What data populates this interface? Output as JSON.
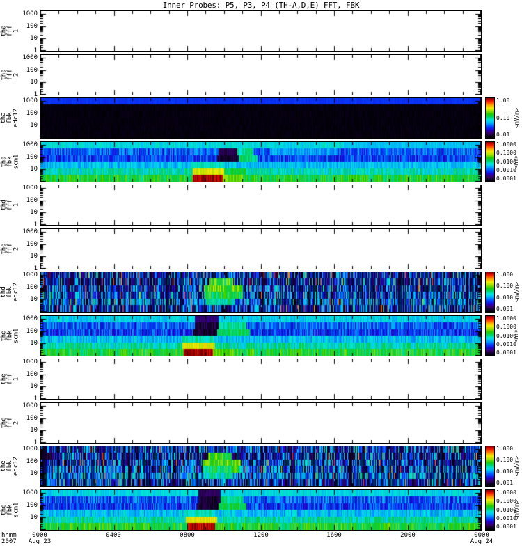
{
  "title": "Inner Probes: P5, P3, P4 (TH-A,D,E) FFT, FBK",
  "xaxis": {
    "unit_label": "hhmm",
    "year_label": "2007",
    "ticks": [
      {
        "hour": 0,
        "label": "0000",
        "sub": "Aug 23"
      },
      {
        "hour": 4,
        "label": "0400"
      },
      {
        "hour": 8,
        "label": "0800"
      },
      {
        "hour": 12,
        "label": "1200"
      },
      {
        "hour": 16,
        "label": "1600"
      },
      {
        "hour": 20,
        "label": "2000"
      },
      {
        "hour": 24,
        "label": "0000",
        "sub": "Aug 24"
      }
    ]
  },
  "chart_data": {
    "type": "heatmap",
    "subtype": "multi-panel-spectrogram",
    "time_range_hours": [
      0,
      24
    ],
    "y_scale": "log",
    "y_range": [
      1,
      1000
    ],
    "colormap": [
      [
        0.0,
        "#000000"
      ],
      [
        0.06,
        "#10002a"
      ],
      [
        0.13,
        "#38006a"
      ],
      [
        0.2,
        "#2200cc"
      ],
      [
        0.28,
        "#0044ff"
      ],
      [
        0.37,
        "#00aaff"
      ],
      [
        0.45,
        "#00e6dd"
      ],
      [
        0.53,
        "#00d060"
      ],
      [
        0.6,
        "#22cc00"
      ],
      [
        0.68,
        "#a8e000"
      ],
      [
        0.75,
        "#eeee00"
      ],
      [
        0.82,
        "#ffaa00"
      ],
      [
        0.9,
        "#ff3300"
      ],
      [
        0.96,
        "#cc0000"
      ],
      [
        1.0,
        "#7a0000"
      ]
    ],
    "panels": [
      {
        "id": "tha_fff_1",
        "label_lines": [
          "tha",
          "fff",
          "1"
        ],
        "kind": "empty",
        "yticks": [
          1000,
          100,
          10,
          1
        ]
      },
      {
        "id": "tha_fff_2",
        "label_lines": [
          "tha",
          "fff",
          "2"
        ],
        "kind": "empty",
        "yticks": [
          1000,
          100,
          10,
          1
        ]
      },
      {
        "id": "tha_fbk_edc12",
        "label_lines": [
          "tha",
          "fbk",
          "edc12"
        ],
        "kind": "spectrogram",
        "seed": 11,
        "yticks": [
          1000,
          100,
          10
        ],
        "colorbar": {
          "ticks": [
            "1.00",
            "0.10",
            "0.01"
          ],
          "unit": "<mV/m>"
        },
        "bands": [
          {
            "base": 0.26,
            "jitter": 0.012
          },
          {
            "base": 0.02,
            "jitter": 0.015
          },
          {
            "base": 0.02,
            "jitter": 0.015
          },
          {
            "base": 0.02,
            "jitter": 0.015
          },
          {
            "base": 0.02,
            "jitter": 0.015
          },
          {
            "base": 0.02,
            "jitter": 0.015
          }
        ]
      },
      {
        "id": "tha_fbk_scm1",
        "label_lines": [
          "tha",
          "fbk",
          "scm1"
        ],
        "kind": "spectrogram",
        "seed": 22,
        "yticks": [
          1000,
          100,
          10
        ],
        "colorbar": {
          "ticks": [
            "1.0000",
            "0.1000",
            "0.0100",
            "0.0010",
            "0.0001"
          ],
          "unit": "<nT>"
        },
        "bands": [
          {
            "base": 0.44,
            "jitter": 0.05,
            "events": [
              [
                16.5,
                24,
                0.4
              ]
            ]
          },
          {
            "base": 0.3,
            "jitter": 0.1,
            "events": [
              [
                9.7,
                10.7,
                0.1
              ],
              [
                10.7,
                11.6,
                0.5
              ],
              [
                12.5,
                16,
                0.36
              ]
            ]
          },
          {
            "base": 0.27,
            "jitter": 0.09,
            "events": [
              [
                9.6,
                10.8,
                0.07
              ],
              [
                10.8,
                11.8,
                0.52
              ]
            ]
          },
          {
            "base": 0.4,
            "jitter": 0.07,
            "events": [
              [
                8.2,
                10.0,
                0.47
              ]
            ]
          },
          {
            "base": 0.47,
            "jitter": 0.09,
            "events": [
              [
                8.3,
                10.0,
                0.73
              ],
              [
                10.0,
                11.2,
                0.55
              ]
            ]
          },
          {
            "base": 0.57,
            "jitter": 0.09,
            "events": [
              [
                8.3,
                9.9,
                0.98
              ],
              [
                9.9,
                11.0,
                0.65
              ]
            ]
          }
        ]
      },
      {
        "id": "thd_fff_1",
        "label_lines": [
          "thd",
          "fff",
          "1"
        ],
        "kind": "empty",
        "yticks": [
          1000,
          100,
          10,
          1
        ]
      },
      {
        "id": "thd_fff_2",
        "label_lines": [
          "thd",
          "fff",
          "2"
        ],
        "kind": "empty",
        "yticks": [
          1000,
          100,
          10,
          1
        ]
      },
      {
        "id": "thd_fbk_edc12",
        "label_lines": [
          "thd",
          "fbk",
          "edc12"
        ],
        "kind": "spectrogram",
        "seed": 33,
        "yticks": [
          1000,
          100,
          10
        ],
        "columnDropout": 0.18,
        "colorbar": {
          "ticks": [
            "1.000",
            "0.100",
            "0.010",
            "0.001"
          ],
          "unit": "<mV/m>"
        },
        "bands": [
          {
            "base": 0.3,
            "jitter": 0.18,
            "dropout": 0.22,
            "spike": 0.02
          },
          {
            "base": 0.28,
            "jitter": 0.2,
            "dropout": 0.28,
            "spike": 0.02,
            "events": [
              [
                9.2,
                10.5,
                0.6
              ]
            ]
          },
          {
            "base": 0.3,
            "jitter": 0.18,
            "dropout": 0.24,
            "spike": 0.02,
            "events": [
              [
                8.9,
                11.0,
                0.62
              ]
            ]
          },
          {
            "base": 0.33,
            "jitter": 0.18,
            "dropout": 0.2,
            "spike": 0.02,
            "events": [
              [
                8.9,
                11.0,
                0.55
              ]
            ]
          },
          {
            "base": 0.36,
            "jitter": 0.16,
            "dropout": 0.16,
            "spike": 0.03,
            "events": [
              [
                9.0,
                10.6,
                0.48
              ]
            ]
          },
          {
            "base": 0.3,
            "jitter": 0.18,
            "dropout": 0.22,
            "spike": 0.03
          }
        ]
      },
      {
        "id": "thd_fbk_scm1",
        "label_lines": [
          "thd",
          "fbk",
          "scm1"
        ],
        "kind": "spectrogram",
        "seed": 44,
        "yticks": [
          1000,
          100,
          10
        ],
        "colorbar": {
          "ticks": [
            "1.0000",
            "0.1000",
            "0.0100",
            "0.0010",
            "0.0001"
          ],
          "unit": "<nT>"
        },
        "bands": [
          {
            "base": 0.42,
            "jitter": 0.06,
            "events": [
              [
                8.4,
                9.7,
                0.13
              ]
            ]
          },
          {
            "base": 0.3,
            "jitter": 0.11,
            "events": [
              [
                8.4,
                9.7,
                0.08
              ],
              [
                9.7,
                11.2,
                0.5
              ]
            ]
          },
          {
            "base": 0.27,
            "jitter": 0.1,
            "events": [
              [
                8.3,
                9.6,
                0.06
              ],
              [
                9.6,
                11.4,
                0.54
              ]
            ]
          },
          {
            "base": 0.4,
            "jitter": 0.08,
            "events": [
              [
                7.7,
                9.4,
                0.48
              ]
            ]
          },
          {
            "base": 0.48,
            "jitter": 0.1,
            "events": [
              [
                7.7,
                9.5,
                0.74
              ]
            ]
          },
          {
            "base": 0.57,
            "jitter": 0.1,
            "events": [
              [
                7.8,
                9.4,
                0.98
              ],
              [
                9.4,
                10.5,
                0.65
              ]
            ]
          }
        ]
      },
      {
        "id": "the_fff_1",
        "label_lines": [
          "the",
          "fff",
          "1"
        ],
        "kind": "empty",
        "yticks": [
          1000,
          100,
          10,
          1
        ]
      },
      {
        "id": "the_fff_2",
        "label_lines": [
          "the",
          "fff",
          "2"
        ],
        "kind": "empty",
        "yticks": [
          1000,
          100,
          10,
          1
        ]
      },
      {
        "id": "the_fbk_edc12",
        "label_lines": [
          "the",
          "fbk",
          "edc12"
        ],
        "kind": "spectrogram",
        "seed": 55,
        "yticks": [
          1000,
          100,
          10
        ],
        "columnDropout": 0.18,
        "colorbar": {
          "ticks": [
            "1.000",
            "0.100",
            "0.010",
            "0.001"
          ],
          "unit": "<mV/m>"
        },
        "bands": [
          {
            "base": 0.3,
            "jitter": 0.18,
            "dropout": 0.22,
            "spike": 0.02
          },
          {
            "base": 0.28,
            "jitter": 0.2,
            "dropout": 0.28,
            "spike": 0.02,
            "events": [
              [
                9.1,
                10.4,
                0.6
              ]
            ]
          },
          {
            "base": 0.3,
            "jitter": 0.18,
            "dropout": 0.24,
            "spike": 0.02,
            "events": [
              [
                8.8,
                10.9,
                0.62
              ]
            ]
          },
          {
            "base": 0.33,
            "jitter": 0.18,
            "dropout": 0.2,
            "spike": 0.02,
            "events": [
              [
                8.8,
                10.9,
                0.55
              ]
            ]
          },
          {
            "base": 0.36,
            "jitter": 0.16,
            "dropout": 0.16,
            "spike": 0.03,
            "events": [
              [
                8.9,
                10.5,
                0.48
              ]
            ]
          },
          {
            "base": 0.3,
            "jitter": 0.18,
            "dropout": 0.22,
            "spike": 0.03
          }
        ]
      },
      {
        "id": "the_fbk_scm1",
        "label_lines": [
          "the",
          "fbk",
          "scm1"
        ],
        "kind": "spectrogram",
        "seed": 66,
        "yticks": [
          1000,
          100,
          10
        ],
        "colorbar": {
          "ticks": [
            "1.0000",
            "0.1000",
            "0.0100",
            "0.0010",
            "0.0001"
          ],
          "unit": "<mV/m>"
        },
        "bands": [
          {
            "base": 0.43,
            "jitter": 0.05,
            "events": [
              [
                8.6,
                9.8,
                0.12
              ]
            ]
          },
          {
            "base": 0.3,
            "jitter": 0.11,
            "events": [
              [
                8.6,
                9.8,
                0.07
              ],
              [
                9.8,
                11.0,
                0.5
              ]
            ]
          },
          {
            "base": 0.27,
            "jitter": 0.1,
            "events": [
              [
                8.5,
                9.7,
                0.06
              ],
              [
                9.7,
                11.2,
                0.55
              ]
            ]
          },
          {
            "base": 0.4,
            "jitter": 0.08,
            "events": [
              [
                7.9,
                9.5,
                0.48
              ]
            ]
          },
          {
            "base": 0.48,
            "jitter": 0.1,
            "events": [
              [
                7.9,
                9.6,
                0.75
              ]
            ]
          },
          {
            "base": 0.57,
            "jitter": 0.1,
            "events": [
              [
                8.0,
                9.5,
                0.98
              ]
            ]
          }
        ]
      }
    ]
  }
}
